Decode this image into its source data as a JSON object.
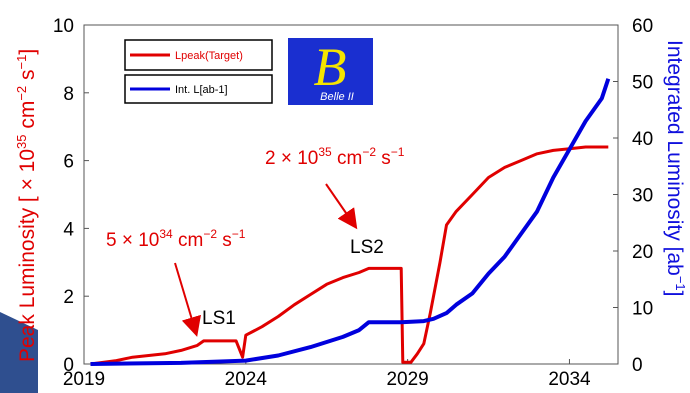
{
  "chart_data": {
    "type": "line",
    "xlim": [
      2019,
      2035.5
    ],
    "x_ticks": [
      "2019",
      "2024",
      "2029",
      "2034"
    ],
    "y_left": {
      "label_prefix": "Peak Luminosity [ × 10",
      "label_exp": "35",
      "label_unit": " cm",
      "label_exp2": "−2",
      "label_unit2": " s",
      "label_exp3": "−1",
      "label_suffix": "]",
      "ylim": [
        0,
        10
      ],
      "ticks": [
        "0",
        "2",
        "4",
        "6",
        "8",
        "10"
      ]
    },
    "y_right": {
      "label": "Integrated Luminosity [ab",
      "label_exp": "−1",
      "label_suffix": "]",
      "ylim": [
        0,
        60
      ],
      "ticks": [
        "0",
        "10",
        "20",
        "30",
        "40",
        "50",
        "60"
      ]
    },
    "grid": false,
    "legend_position": "top-left",
    "series": [
      {
        "name": "Lpeak(Target)",
        "axis": "left",
        "color": "#e00000",
        "points": [
          [
            2019.2,
            0
          ],
          [
            2020,
            0.1
          ],
          [
            2020.5,
            0.2
          ],
          [
            2021,
            0.25
          ],
          [
            2021.5,
            0.3
          ],
          [
            2022,
            0.4
          ],
          [
            2022.5,
            0.55
          ],
          [
            2022.7,
            0.68
          ],
          [
            2023.7,
            0.68
          ],
          [
            2023.9,
            0.2
          ],
          [
            2024,
            0.85
          ],
          [
            2024.5,
            1.1
          ],
          [
            2025,
            1.4
          ],
          [
            2025.5,
            1.75
          ],
          [
            2026,
            2.05
          ],
          [
            2026.5,
            2.35
          ],
          [
            2027,
            2.55
          ],
          [
            2027.5,
            2.7
          ],
          [
            2027.8,
            2.82
          ],
          [
            2028.8,
            2.82
          ],
          [
            2028.85,
            0.05
          ],
          [
            2029.1,
            0.05
          ],
          [
            2029.3,
            0.3
          ],
          [
            2029.5,
            0.6
          ],
          [
            2029.7,
            1.5
          ],
          [
            2030,
            3.0
          ],
          [
            2030.2,
            4.1
          ],
          [
            2030.5,
            4.5
          ],
          [
            2031,
            5.0
          ],
          [
            2031.5,
            5.5
          ],
          [
            2032,
            5.8
          ],
          [
            2032.5,
            6.0
          ],
          [
            2033,
            6.2
          ],
          [
            2033.5,
            6.3
          ],
          [
            2034,
            6.35
          ],
          [
            2034.5,
            6.4
          ],
          [
            2035.2,
            6.4
          ]
        ]
      },
      {
        "name": "Int. L[ab-1]",
        "axis": "right",
        "color": "#0000dd",
        "points": [
          [
            2019.2,
            0
          ],
          [
            2022,
            0.2
          ],
          [
            2024,
            0.6
          ],
          [
            2025,
            1.5
          ],
          [
            2026,
            3.0
          ],
          [
            2027,
            4.8
          ],
          [
            2027.5,
            6.0
          ],
          [
            2027.8,
            7.4
          ],
          [
            2028.8,
            7.4
          ],
          [
            2029.5,
            7.6
          ],
          [
            2029.8,
            8.0
          ],
          [
            2030.2,
            9.0
          ],
          [
            2030.5,
            10.5
          ],
          [
            2031,
            12.5
          ],
          [
            2031.5,
            16.0
          ],
          [
            2032,
            19.0
          ],
          [
            2032.5,
            23.0
          ],
          [
            2033,
            27.0
          ],
          [
            2033.5,
            33.0
          ],
          [
            2034,
            38.0
          ],
          [
            2034.5,
            43.0
          ],
          [
            2035,
            47.0
          ],
          [
            2035.2,
            50.5
          ]
        ]
      }
    ],
    "annotations": [
      {
        "text": "LS1"
      },
      {
        "text": "LS2"
      },
      {
        "text_base": "5 × 10",
        "text_exp": "34",
        "text_mid": " cm",
        "text_exp2": "−2",
        "text_mid2": " s",
        "text_exp3": "−1"
      },
      {
        "text_base": "2 × 10",
        "text_exp": "35",
        "text_mid": " cm",
        "text_exp2": "−2",
        "text_mid2": " s",
        "text_exp3": "−1"
      }
    ],
    "logo": {
      "letter": "B",
      "subtitle": "Belle II"
    }
  }
}
